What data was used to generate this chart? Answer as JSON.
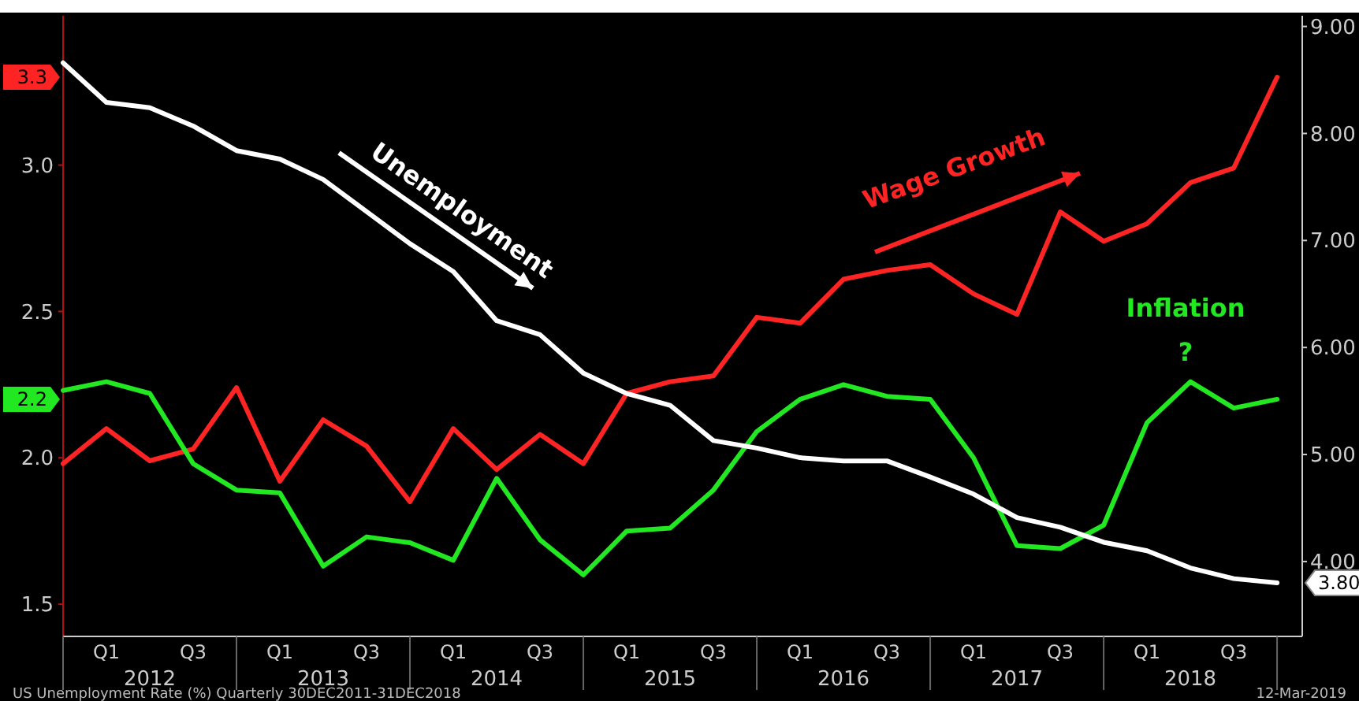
{
  "chart_data": {
    "type": "line",
    "categories": [
      null,
      "Q1",
      null,
      "Q3",
      null,
      "Q1",
      null,
      "Q3",
      null,
      "Q1",
      null,
      "Q3",
      null,
      "Q1",
      null,
      "Q3",
      null,
      "Q1",
      null,
      "Q3",
      null,
      "Q1",
      null,
      "Q3",
      null,
      "Q1",
      null,
      "Q3",
      null
    ],
    "series": [
      {
        "color": "#ff2424",
        "values": [
          1.98,
          2.1,
          1.99,
          2.03,
          2.24,
          1.92,
          2.13,
          2.04,
          1.85,
          2.1,
          1.96,
          2.08,
          1.98,
          2.22,
          2.26,
          2.28,
          2.48,
          2.46,
          2.61,
          2.64,
          2.66,
          2.56,
          2.49,
          2.84,
          2.74,
          2.8,
          2.94,
          2.99,
          3.3
        ]
      },
      {
        "color": "#22e822",
        "values": [
          2.23,
          2.26,
          2.22,
          1.98,
          1.89,
          1.88,
          1.63,
          1.73,
          1.71,
          1.65,
          1.93,
          1.72,
          1.6,
          1.75,
          1.76,
          1.89,
          2.09,
          2.2,
          2.25,
          2.21,
          2.2,
          2.0,
          1.7,
          1.69,
          1.77,
          2.12,
          2.26,
          2.17,
          2.2
        ]
      },
      {
        "color": "#ffffff",
        "axis": "y2",
        "values": [
          8.66,
          8.29,
          8.24,
          8.07,
          7.84,
          7.76,
          7.57,
          7.27,
          6.97,
          6.71,
          6.25,
          6.12,
          5.76,
          5.57,
          5.46,
          5.13,
          5.06,
          4.97,
          4.94,
          4.94,
          4.79,
          4.63,
          4.41,
          4.32,
          4.18,
          4.1,
          3.94,
          3.84,
          3.8
        ]
      }
    ],
    "ylim": [
      1.39,
      3.51
    ],
    "yticks": [
      {
        "value": 1.5,
        "label": "1.5"
      },
      {
        "value": 2.0,
        "label": "2.0"
      },
      {
        "value": 2.2,
        "label": "2.2"
      },
      {
        "value": 2.5,
        "label": "2.5"
      },
      {
        "value": 3.0,
        "label": "3.0"
      },
      {
        "value": 3.3,
        "label": "3.3"
      }
    ],
    "y2lim": [
      3.3,
      9.1
    ],
    "y2ticks": [
      {
        "value": 3.8,
        "label": "3.80"
      },
      {
        "value": 4,
        "label": "4.00"
      },
      {
        "value": 5,
        "label": "5.00"
      },
      {
        "value": 6,
        "label": "6.00"
      },
      {
        "value": 7,
        "label": "7.00"
      },
      {
        "value": 8,
        "label": "8.00"
      },
      {
        "value": 9,
        "label": "9.00"
      }
    ],
    "annotations": [
      "2012",
      "2013",
      "2014",
      "2015",
      "2016",
      "2017",
      "2018",
      "Unemployment",
      "Wage Growth",
      "Inflation",
      "?",
      "US Unemployment Rate (%) Quarterly 30DEC2011-31DEC2018",
      "12-Mar-2019"
    ],
    "grid": false,
    "marker": "none",
    "line_style": "solid"
  }
}
